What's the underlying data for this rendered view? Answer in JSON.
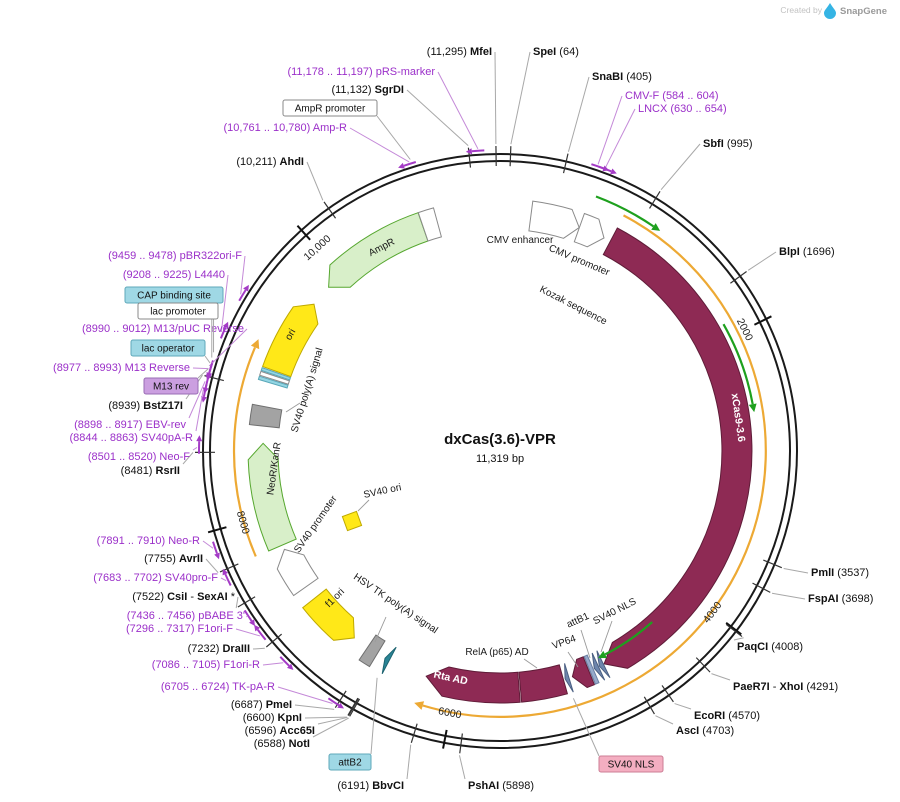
{
  "watermark": {
    "created_by": "Created by",
    "brand": "SnapGene"
  },
  "plasmid": {
    "name": "dxCas(3.6)-VPR",
    "size_label": "11,319 bp",
    "length_bp": 11319
  },
  "scale_ticks": [
    {
      "bp": 2000,
      "label": "2000"
    },
    {
      "bp": 4000,
      "label": "4000"
    },
    {
      "bp": 6000,
      "label": "6000"
    },
    {
      "bp": 8000,
      "label": "8000"
    },
    {
      "bp": 10000,
      "label": "10,000"
    }
  ],
  "features": [
    {
      "id": "cmv-enhancer",
      "name": "CMV enhancer",
      "start": 235,
      "end": 614,
      "style": "white",
      "shape": "arrow",
      "dir": 1,
      "head": 12
    },
    {
      "id": "cmv-promoter",
      "name": "CMV promoter",
      "start": 615,
      "end": 818,
      "style": "white",
      "shape": "arrow",
      "dir": 1,
      "head": 12
    },
    {
      "id": "kozak",
      "name": "Kozak sequence",
      "start": 857,
      "end": 867,
      "style": "none",
      "shape": "none",
      "dir": 1
    },
    {
      "id": "xcas9",
      "name": "xCas9-3.6",
      "start": 872,
      "end": 4840,
      "style": "maroon",
      "shape": "arrow",
      "dir": 1,
      "head": 18
    },
    {
      "id": "sv40-nls-1",
      "name": "SV40 NLS",
      "start": 4846,
      "end": 4880,
      "style": "slate",
      "shape": "arrow",
      "dir": 1,
      "head": 10
    },
    {
      "id": "sv40-nls-2",
      "name": "SV40 NLS",
      "start": 4888,
      "end": 4922,
      "style": "slate",
      "shape": "arrow",
      "dir": 1,
      "head": 10
    },
    {
      "id": "attb1",
      "name": "attB1",
      "start": 4932,
      "end": 4960,
      "style": "slateLight",
      "shape": "rect"
    },
    {
      "id": "vp64",
      "name": "VP64",
      "start": 4968,
      "end": 5100,
      "style": "maroon",
      "shape": "arrow",
      "dir": 1,
      "head": 10
    },
    {
      "id": "sv40-nls-3",
      "name": "SV40 NLS",
      "start": 5128,
      "end": 5158,
      "style": "slate",
      "shape": "arrow",
      "dir": 1,
      "head": 10
    },
    {
      "id": "rela-p65-ad",
      "name": "RelA (p65) AD",
      "start": 5172,
      "end": 5505,
      "style": "maroon",
      "shape": "rect"
    },
    {
      "id": "rta-ad",
      "name": "Rta AD",
      "start": 5515,
      "end": 6230,
      "style": "maroon",
      "shape": "arrow",
      "dir": 1,
      "head": 20
    },
    {
      "id": "attb2",
      "name": "attB2",
      "start": 6536,
      "end": 6572,
      "style": "teal",
      "shape": "arrow",
      "dir": 1,
      "head": 9
    },
    {
      "id": "hsv-tk-polya",
      "name": "HSV TK poly(A) signal",
      "start": 6640,
      "end": 6728,
      "style": "gray",
      "shape": "rect"
    },
    {
      "id": "f1-ori",
      "name": "f1 ori",
      "start": 6852,
      "end": 7280,
      "style": "yellow",
      "shape": "arrow",
      "dir": -1,
      "head": 14
    },
    {
      "id": "sv40-promoter",
      "name": "SV40 promoter",
      "start": 7389,
      "end": 7718,
      "style": "white",
      "shape": "arrow",
      "dir": 1,
      "head": 14
    },
    {
      "id": "sv40-ori",
      "name": "SV40 ori",
      "start": 7669,
      "end": 7724,
      "style": "yellow",
      "shape": "marker"
    },
    {
      "id": "neor-kanr",
      "name": "NeoR/KanR",
      "start": 7754,
      "end": 8548,
      "style": "green",
      "shape": "arrow",
      "dir": 1,
      "head": 16
    },
    {
      "id": "sv40-polya",
      "name": "SV40 poly(A) signal",
      "start": 8678,
      "end": 8825,
      "style": "gray",
      "shape": "rect"
    },
    {
      "id": "lac-operator",
      "name": "lac operator",
      "start": 9008,
      "end": 9032,
      "style": "cyan",
      "shape": "rect"
    },
    {
      "id": "lac-promoter",
      "name": "lac promoter",
      "start": 9040,
      "end": 9068,
      "style": "white",
      "shape": "rect"
    },
    {
      "id": "cap-binding-site",
      "name": "CAP binding site",
      "start": 9076,
      "end": 9097,
      "style": "cyan",
      "shape": "rect"
    },
    {
      "id": "ori",
      "name": "ori",
      "start": 9105,
      "end": 9693,
      "style": "yellow",
      "shape": "arrow",
      "dir": 1,
      "head": 14
    },
    {
      "id": "ampr",
      "name": "AmpR",
      "start": 9863,
      "end": 10723,
      "style": "green",
      "shape": "arrow",
      "dir": -1,
      "head": 16
    },
    {
      "id": "ampr-promoter",
      "name": "AmpR promoter",
      "start": 10724,
      "end": 10838,
      "style": "white",
      "shape": "rect"
    }
  ],
  "orf_arcs": [
    {
      "id": "orf-frame-1",
      "start": 870,
      "end": 6190
    },
    {
      "id": "orf-frame-2",
      "start": 7755,
      "end": 9210
    }
  ],
  "orf_arrows": [
    {
      "id": "orf-arrow-1",
      "start": 650,
      "end": 1080
    },
    {
      "id": "orf-arrow-2",
      "start": 1900,
      "end": 2500
    },
    {
      "id": "orf-arrow-3",
      "start": 4350,
      "end": 4800
    }
  ],
  "enzymes": [
    {
      "id": "mfei",
      "bp": 11295,
      "parts": [
        {
          "t": "(11,295) "
        },
        {
          "t": "MfeI",
          "b": 1
        }
      ]
    },
    {
      "id": "spei",
      "bp": 64,
      "parts": [
        {
          "t": "SpeI",
          "b": 1
        },
        {
          "t": "  (64)"
        }
      ]
    },
    {
      "id": "snabi",
      "bp": 405,
      "parts": [
        {
          "t": "SnaBI",
          "b": 1
        },
        {
          "t": "  (405)"
        }
      ]
    },
    {
      "id": "sgrdi",
      "bp": 11132,
      "parts": [
        {
          "t": "(11,132) "
        },
        {
          "t": "SgrDI",
          "b": 1
        }
      ]
    },
    {
      "id": "sbfi",
      "bp": 995,
      "parts": [
        {
          "t": "SbfI",
          "b": 1
        },
        {
          "t": "  (995)"
        }
      ]
    },
    {
      "id": "ahdi",
      "bp": 10211,
      "parts": [
        {
          "t": "(10,211) "
        },
        {
          "t": "AhdI",
          "b": 1
        }
      ]
    },
    {
      "id": "blpi",
      "bp": 1696,
      "parts": [
        {
          "t": "BlpI",
          "b": 1
        },
        {
          "t": "  (1696)"
        }
      ]
    },
    {
      "id": "pmli",
      "bp": 3537,
      "parts": [
        {
          "t": "PmlI",
          "b": 1
        },
        {
          "t": "  (3537)"
        }
      ]
    },
    {
      "id": "fspai",
      "bp": 3698,
      "parts": [
        {
          "t": "FspAI",
          "b": 1
        },
        {
          "t": "  (3698)"
        }
      ]
    },
    {
      "id": "paqci",
      "bp": 4008,
      "parts": [
        {
          "t": "PaqCI",
          "b": 1
        },
        {
          "t": "  (4008)"
        }
      ]
    },
    {
      "id": "paer7i-xhoi",
      "bp": 4291,
      "parts": [
        {
          "t": "PaeR7I",
          "b": 1
        },
        {
          "t": " - "
        },
        {
          "t": "XhoI",
          "b": 1
        },
        {
          "t": "  (4291)"
        }
      ]
    },
    {
      "id": "ecori",
      "bp": 4570,
      "parts": [
        {
          "t": "EcoRI",
          "b": 1
        },
        {
          "t": "  (4570)"
        }
      ]
    },
    {
      "id": "asci",
      "bp": 4703,
      "parts": [
        {
          "t": "AscI",
          "b": 1
        },
        {
          "t": "  (4703)"
        }
      ]
    },
    {
      "id": "pshai",
      "bp": 5898,
      "parts": [
        {
          "t": "PshAI",
          "b": 1
        },
        {
          "t": "  (5898)"
        }
      ]
    },
    {
      "id": "bbvci",
      "bp": 6191,
      "parts": [
        {
          "t": "(6191) "
        },
        {
          "t": "BbvCI",
          "b": 1
        }
      ]
    },
    {
      "id": "noti",
      "bp": 6588,
      "parts": [
        {
          "t": "(6588) "
        },
        {
          "t": "NotI",
          "b": 1
        }
      ]
    },
    {
      "id": "acc65i",
      "bp": 6596,
      "parts": [
        {
          "t": "(6596) "
        },
        {
          "t": "Acc65I",
          "b": 1
        }
      ]
    },
    {
      "id": "kpni",
      "bp": 6600,
      "parts": [
        {
          "t": "(6600) "
        },
        {
          "t": "KpnI",
          "b": 1
        }
      ]
    },
    {
      "id": "pmei",
      "bp": 6687,
      "parts": [
        {
          "t": "(6687) "
        },
        {
          "t": "PmeI",
          "b": 1
        }
      ]
    },
    {
      "id": "draiii",
      "bp": 7232,
      "parts": [
        {
          "t": "(7232) "
        },
        {
          "t": "DraIII",
          "b": 1
        }
      ]
    },
    {
      "id": "csii-sexai",
      "bp": 7522,
      "parts": [
        {
          "t": "(7522) "
        },
        {
          "t": "CsiI",
          "b": 1
        },
        {
          "t": "  - "
        },
        {
          "t": "SexAI",
          "b": 1
        },
        {
          "t": " *"
        }
      ]
    },
    {
      "id": "avrii",
      "bp": 7755,
      "parts": [
        {
          "t": "(7755) "
        },
        {
          "t": "AvrII",
          "b": 1
        }
      ]
    },
    {
      "id": "rsrii",
      "bp": 8481,
      "parts": [
        {
          "t": "(8481) "
        },
        {
          "t": "RsrII",
          "b": 1
        }
      ]
    },
    {
      "id": "bstz17i",
      "bp": 8939,
      "parts": [
        {
          "t": "(8939) "
        },
        {
          "t": "BstZ17I",
          "b": 1
        }
      ]
    }
  ],
  "primers": [
    {
      "id": "prs-marker",
      "text": "(11,178 .. 11,197)  pRS-marker",
      "start": 11178,
      "end": 11197,
      "dir": -1
    },
    {
      "id": "cmv-f",
      "text": "CMV-F  (584 .. 604)",
      "start": 584,
      "end": 604,
      "dir": 1
    },
    {
      "id": "lncx",
      "text": "LNCX  (630 .. 654)",
      "start": 630,
      "end": 654,
      "dir": 1
    },
    {
      "id": "amp-r",
      "text": "(10,761 .. 10,780)  Amp-R",
      "start": 10761,
      "end": 10780,
      "dir": -1
    },
    {
      "id": "pbr322ori-f",
      "text": "(9459 .. 9478)  pBR322ori-F",
      "start": 9459,
      "end": 9478,
      "dir": 1
    },
    {
      "id": "l4440",
      "text": "(9208 .. 9225)  L4440",
      "start": 9208,
      "end": 9225,
      "dir": 1
    },
    {
      "id": "m13-puc-reverse",
      "text": "(8990 .. 9012)  M13/pUC Reverse",
      "start": 8990,
      "end": 9012,
      "dir": -1
    },
    {
      "id": "m13-reverse",
      "text": "(8977 .. 8993)  M13 Reverse",
      "start": 8977,
      "end": 8993,
      "dir": -1
    },
    {
      "id": "ebv-rev",
      "text": "(8898 .. 8917)  EBV-rev",
      "start": 8898,
      "end": 8917,
      "dir": -1
    },
    {
      "id": "sv40pa-r",
      "text": "(8844 .. 8863)  SV40pA-R",
      "start": 8844,
      "end": 8863,
      "dir": -1
    },
    {
      "id": "neo-f",
      "text": "(8501 .. 8520)  Neo-F",
      "start": 8501,
      "end": 8520,
      "dir": 1
    },
    {
      "id": "neo-r",
      "text": "(7891 .. 7910)  Neo-R",
      "start": 7891,
      "end": 7910,
      "dir": -1
    },
    {
      "id": "sv40pro-f",
      "text": "(7683 .. 7702)  SV40pro-F",
      "start": 7683,
      "end": 7702,
      "dir": 1
    },
    {
      "id": "pbabe-3",
      "text": "(7436 .. 7456)  pBABE 3'",
      "start": 7436,
      "end": 7456,
      "dir": -1
    },
    {
      "id": "f1ori-f",
      "text": "(7296 .. 7317)  F1ori-F",
      "start": 7296,
      "end": 7317,
      "dir": 1
    },
    {
      "id": "f1ori-r",
      "text": "(7086 .. 7105)  F1ori-R",
      "start": 7086,
      "end": 7105,
      "dir": -1
    },
    {
      "id": "tk-pa-r",
      "text": "(6705 .. 6724)  TK-pA-R",
      "start": 6705,
      "end": 6724,
      "dir": -1
    }
  ],
  "boxed_labels": [
    {
      "id": "ampr-promoter-label",
      "text": "AmpR promoter",
      "style": "whiteBox",
      "bp": 10781
    },
    {
      "id": "cap-binding-site-label",
      "text": "CAP binding site",
      "style": "cyanBox",
      "bp": 9087
    },
    {
      "id": "lac-promoter-label",
      "text": "lac promoter",
      "style": "whiteBox",
      "bp": 9054
    },
    {
      "id": "lac-operator-label",
      "text": "lac operator",
      "style": "cyanBox",
      "bp": 9020
    },
    {
      "id": "m13-rev-label",
      "text": "M13 rev",
      "style": "lavenderBox",
      "bp": 8985
    },
    {
      "id": "attb2-label",
      "text": "attB2",
      "style": "cyanBox",
      "bp": 6554
    },
    {
      "id": "sv40-nls-label",
      "text": "SV40 NLS",
      "style": "pinkBox",
      "bp": 5140
    }
  ]
}
